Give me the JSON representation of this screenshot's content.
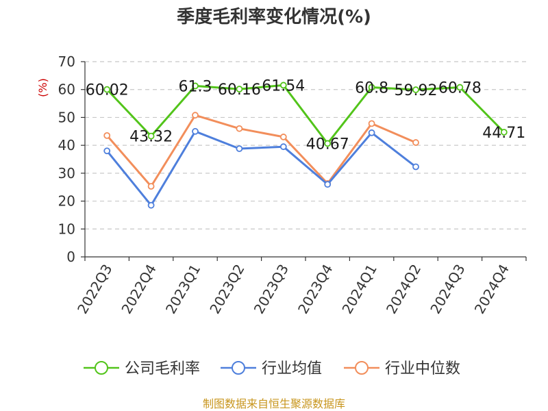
{
  "chart_data": {
    "type": "line",
    "title": "季度毛利率变化情况(%)",
    "ylabel": "(%)",
    "xlabel": "",
    "ylim": [
      0,
      70
    ],
    "yticks": [
      0,
      10,
      20,
      30,
      40,
      50,
      60,
      70
    ],
    "grid": true,
    "legend_position": "bottom",
    "categories": [
      "2022Q3",
      "2022Q4",
      "2023Q1",
      "2023Q2",
      "2023Q3",
      "2023Q4",
      "2024Q1",
      "2024Q2",
      "2024Q3",
      "2024Q4"
    ],
    "series": [
      {
        "name": "公司毛利率",
        "color": "#52c41a",
        "values": [
          60.02,
          43.32,
          61.3,
          60.16,
          61.54,
          40.67,
          60.8,
          59.92,
          60.78,
          44.71
        ],
        "labels": [
          "60.02",
          "43.32",
          "61.3",
          "60.16",
          "61.54",
          "40.67",
          "60.8",
          "59.92",
          "60.78",
          "44.71"
        ]
      },
      {
        "name": "行业均值",
        "color": "#4e7fdc",
        "values": [
          38,
          18.5,
          45,
          38.8,
          39.5,
          26,
          44.5,
          32.3,
          null,
          null
        ]
      },
      {
        "name": "行业中位数",
        "color": "#f28e5b",
        "values": [
          43.5,
          25.3,
          50.8,
          46,
          43,
          26.3,
          47.8,
          41,
          null,
          null
        ]
      }
    ]
  },
  "source": "制图数据来自恒生聚源数据库"
}
